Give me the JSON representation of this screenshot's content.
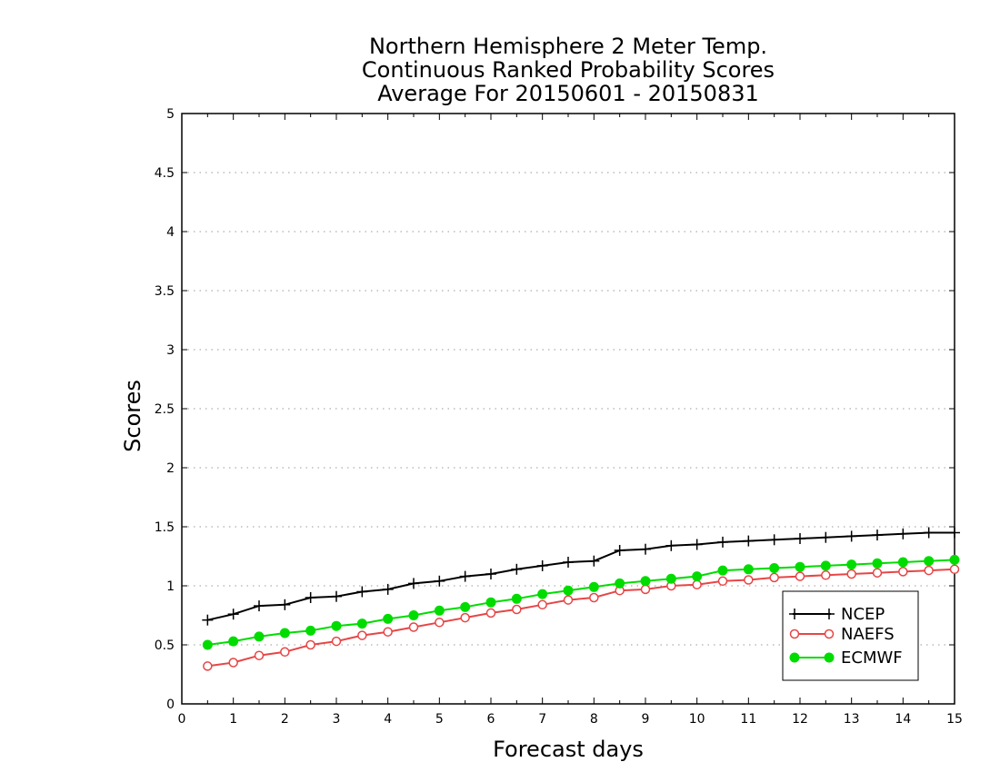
{
  "chart_data": {
    "type": "line",
    "title": [
      "Northern Hemisphere 2 Meter Temp.",
      "Continuous Ranked Probability Scores",
      "Average For 20150601 - 20150831"
    ],
    "xlabel": "Forecast days",
    "ylabel": "Scores",
    "xlim": [
      0,
      15
    ],
    "ylim": [
      0,
      5
    ],
    "xticks": [
      0,
      1,
      2,
      3,
      4,
      5,
      6,
      7,
      8,
      9,
      10,
      11,
      12,
      13,
      14,
      15
    ],
    "yticks": [
      0,
      0.5,
      1,
      1.5,
      2,
      2.5,
      3,
      3.5,
      4,
      4.5,
      5
    ],
    "ytick_labels": [
      "0",
      "0.5",
      "1",
      "1.5",
      "2",
      "2.5",
      "3",
      "3.5",
      "4",
      "4.5",
      "5"
    ],
    "grid": "horizontal dotted",
    "legend_position": "bottom-right",
    "x": [
      0.5,
      1,
      1.5,
      2,
      2.5,
      3,
      3.5,
      4,
      4.5,
      5,
      5.5,
      6,
      6.5,
      7,
      7.5,
      8,
      8.5,
      9,
      9.5,
      10,
      10.5,
      11,
      11.5,
      12,
      12.5,
      13,
      13.5,
      14,
      14.5,
      15
    ],
    "series": [
      {
        "name": "NCEP",
        "color": "#000000",
        "marker": "plus",
        "values": [
          0.71,
          0.76,
          0.83,
          0.84,
          0.9,
          0.91,
          0.95,
          0.97,
          1.02,
          1.04,
          1.08,
          1.1,
          1.14,
          1.17,
          1.2,
          1.21,
          1.3,
          1.31,
          1.34,
          1.35,
          1.37,
          1.38,
          1.39,
          1.4,
          1.41,
          1.42,
          1.43,
          1.44,
          1.45,
          1.45
        ]
      },
      {
        "name": "NAEFS",
        "color": "#e64646",
        "marker": "open-circle",
        "values": [
          0.32,
          0.35,
          0.41,
          0.44,
          0.5,
          0.53,
          0.58,
          0.61,
          0.65,
          0.69,
          0.73,
          0.77,
          0.8,
          0.84,
          0.88,
          0.9,
          0.96,
          0.97,
          1.0,
          1.01,
          1.04,
          1.05,
          1.07,
          1.08,
          1.09,
          1.1,
          1.11,
          1.12,
          1.13,
          1.14
        ]
      },
      {
        "name": "ECMWF",
        "color": "#00dc00",
        "marker": "filled-circle",
        "values": [
          0.5,
          0.53,
          0.57,
          0.6,
          0.62,
          0.66,
          0.68,
          0.72,
          0.75,
          0.79,
          0.82,
          0.86,
          0.89,
          0.93,
          0.96,
          0.99,
          1.02,
          1.04,
          1.06,
          1.08,
          1.13,
          1.14,
          1.15,
          1.16,
          1.17,
          1.18,
          1.19,
          1.2,
          1.21,
          1.22
        ]
      }
    ]
  }
}
